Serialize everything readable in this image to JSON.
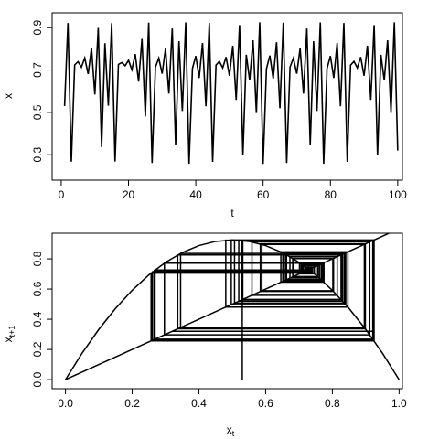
{
  "chart_data": [
    {
      "type": "line",
      "color": "#000000",
      "x": [
        1,
        2,
        3,
        4,
        5,
        6,
        7,
        8,
        9,
        10,
        11,
        12,
        13,
        14,
        15,
        16,
        17,
        18,
        19,
        20,
        21,
        22,
        23,
        24,
        25,
        26,
        27,
        28,
        29,
        30,
        31,
        32,
        33,
        34,
        35,
        36,
        37,
        38,
        39,
        40,
        41,
        42,
        43,
        44,
        45,
        46,
        47,
        48,
        49,
        50,
        51,
        52,
        53,
        54,
        55,
        56,
        57,
        58,
        59,
        60,
        61,
        62,
        63,
        64,
        65,
        66,
        67,
        68,
        69,
        70,
        71,
        72,
        73,
        74,
        75,
        76,
        77,
        78,
        79,
        80,
        81,
        82,
        83,
        84,
        85,
        86,
        87,
        88,
        89,
        90,
        91,
        92,
        93,
        94,
        95,
        96,
        97,
        98,
        99,
        100
      ],
      "values": [
        0.53,
        0.9217,
        0.267,
        0.7241,
        0.7392,
        0.7133,
        0.7567,
        0.6812,
        0.8035,
        0.5842,
        0.8988,
        0.3365,
        0.8261,
        0.5315,
        0.9213,
        0.2683,
        0.7264,
        0.7353,
        0.7201,
        0.7458,
        0.7015,
        0.7748,
        0.6456,
        0.8466,
        0.4805,
        0.9236,
        0.2611,
        0.7138,
        0.7559,
        0.6827,
        0.8015,
        0.5887,
        0.8959,
        0.3451,
        0.8362,
        0.5068,
        0.9248,
        0.2573,
        0.7071,
        0.7663,
        0.6626,
        0.8272,
        0.5289,
        0.9219,
        0.2664,
        0.7231,
        0.7408,
        0.7105,
        0.7611,
        0.6728,
        0.8145,
        0.559,
        0.9121,
        0.2966,
        0.7719,
        0.6515,
        0.8401,
        0.497,
        0.925,
        0.2567,
        0.706,
        0.768,
        0.6593,
        0.8311,
        0.5194,
        0.9236,
        0.2611,
        0.7138,
        0.7559,
        0.6827,
        0.8015,
        0.5887,
        0.8959,
        0.3451,
        0.8362,
        0.5068,
        0.9248,
        0.2573,
        0.7071,
        0.7663,
        0.6626,
        0.8272,
        0.5289,
        0.9219,
        0.2664,
        0.7231,
        0.7408,
        0.7105,
        0.7611,
        0.6728,
        0.8145,
        0.559,
        0.9121,
        0.2966,
        0.7719,
        0.6515,
        0.8401,
        0.497,
        0.925,
        0.32
      ],
      "xlabel": "t",
      "ylabel": "x",
      "xlim": [
        -2.7,
        101.4
      ],
      "ylim": [
        0.18,
        0.97
      ],
      "xticks": [
        0,
        20,
        40,
        60,
        80,
        100
      ],
      "yticks": [
        0.3,
        0.5,
        0.7,
        0.9
      ]
    },
    {
      "type": "cobweb",
      "color": "#000000",
      "xlabel": {
        "main": "x",
        "sub": "t"
      },
      "ylabel": {
        "main": "x",
        "sub": "t+1"
      },
      "curve": {
        "x": [
          0,
          0.05,
          0.1,
          0.15,
          0.2,
          0.25,
          0.3,
          0.35,
          0.4,
          0.45,
          0.5,
          0.55,
          0.6,
          0.65,
          0.7,
          0.75,
          0.8,
          0.85,
          0.9,
          0.95,
          1
        ],
        "y": [
          0,
          0.1758,
          0.333,
          0.4718,
          0.592,
          0.6938,
          0.777,
          0.8418,
          0.888,
          0.9158,
          0.925,
          0.9158,
          0.888,
          0.8418,
          0.777,
          0.6938,
          0.592,
          0.4718,
          0.333,
          0.1758,
          0
        ]
      },
      "diagonal": {
        "x": [
          0,
          1
        ],
        "y": [
          0,
          1
        ]
      },
      "xlim": [
        -0.04,
        1.01
      ],
      "ylim": [
        -0.06,
        0.97
      ],
      "xticks": [
        {
          "value": 0,
          "label": "0.0"
        },
        0.2,
        0.4,
        0.6,
        0.8,
        {
          "value": 1,
          "label": "1.0"
        }
      ],
      "yticks": [
        {
          "value": 0,
          "label": "0.0"
        },
        0.2,
        0.4,
        0.6,
        0.8
      ]
    }
  ]
}
